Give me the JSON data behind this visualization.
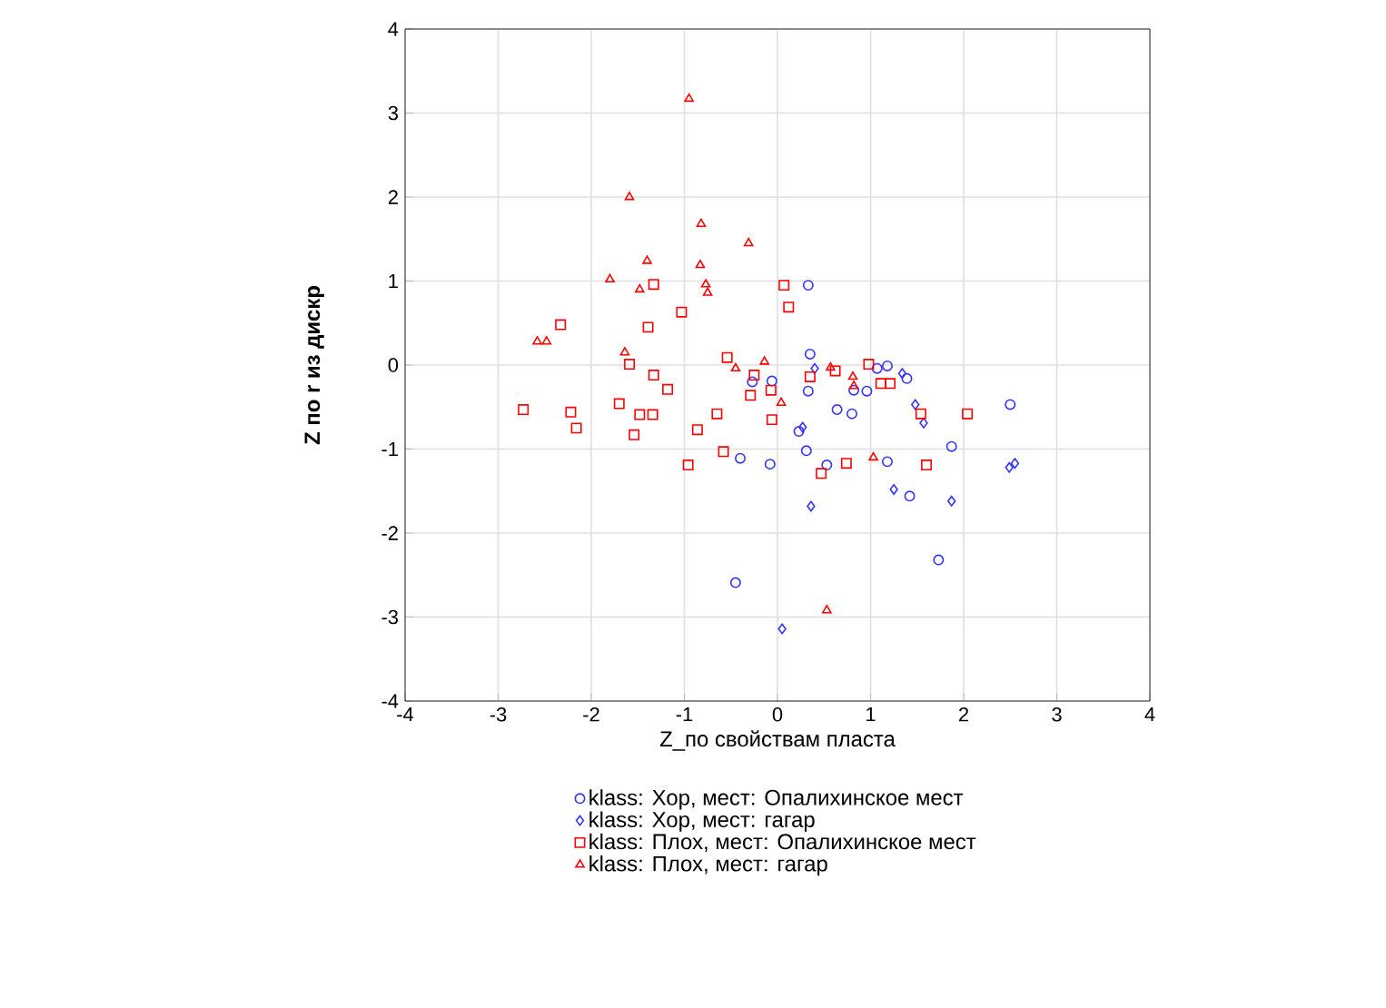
{
  "chart_data": {
    "type": "scatter",
    "xlabel": "Z_по свойствам пласта",
    "ylabel": "Z по r из дискр",
    "xlim": [
      -4,
      4
    ],
    "ylim": [
      -4,
      4
    ],
    "xticks": [
      -4,
      -3,
      -2,
      -1,
      0,
      1,
      2,
      3,
      4
    ],
    "yticks": [
      -4,
      -3,
      -2,
      -1,
      0,
      1,
      2,
      3,
      4
    ],
    "grid": true,
    "legend": "bottom",
    "series": [
      {
        "name": "klass: Хор, мест: Опалихинское мест",
        "color": "#3333ff",
        "marker": "circle",
        "x": [
          0.33,
          0.35,
          -0.27,
          -0.06,
          0.33,
          0.64,
          0.8,
          0.23,
          0.31,
          -0.4,
          -0.08,
          0.53,
          1.18,
          1.42,
          1.87,
          2.5,
          1.73,
          0.96,
          1.18,
          1.07,
          1.39,
          0.82,
          -0.45
        ],
        "values": [
          0.95,
          0.13,
          -0.2,
          -0.19,
          -0.31,
          -0.53,
          -0.58,
          -0.79,
          -1.02,
          -1.11,
          -1.18,
          -1.19,
          -1.15,
          -1.56,
          -0.97,
          -0.47,
          -2.32,
          -0.31,
          -0.01,
          -0.04,
          -0.16,
          -0.3,
          -2.59
        ]
      },
      {
        "name": "klass: Хор, мест: гагар",
        "color": "#3333ff",
        "marker": "diamond",
        "x": [
          0.4,
          1.34,
          1.48,
          1.57,
          0.27,
          1.25,
          1.87,
          0.36,
          2.49,
          2.55,
          0.05
        ],
        "values": [
          -0.04,
          -0.1,
          -0.47,
          -0.69,
          -0.74,
          -1.48,
          -1.62,
          -1.68,
          -1.22,
          -1.17,
          -3.14
        ]
      },
      {
        "name": "klass: Плох, мест: Опалихинское мест",
        "color": "#ff0000",
        "marker": "square",
        "x": [
          -1.33,
          0.07,
          0.12,
          -1.03,
          -2.33,
          -1.39,
          -1.59,
          -0.54,
          -1.33,
          -1.18,
          -2.73,
          -2.22,
          -2.16,
          -1.7,
          -1.48,
          -1.34,
          -1.54,
          -0.86,
          -0.65,
          -0.96,
          -0.58,
          -0.25,
          -0.29,
          -0.07,
          -0.06,
          0.35,
          0.62,
          0.47,
          0.98,
          1.11,
          1.21,
          1.54,
          2.04,
          1.6,
          0.74
        ],
        "values": [
          0.96,
          0.95,
          0.69,
          0.63,
          0.48,
          0.45,
          0.01,
          0.09,
          -0.12,
          -0.29,
          -0.53,
          -0.56,
          -0.75,
          -0.46,
          -0.59,
          -0.59,
          -0.83,
          -0.77,
          -0.58,
          -1.19,
          -1.03,
          -0.12,
          -0.36,
          -0.3,
          -0.65,
          -0.14,
          -0.07,
          -1.29,
          0.01,
          -0.22,
          -0.22,
          -0.58,
          -0.58,
          -1.19,
          -1.17
        ]
      },
      {
        "name": "klass: Плох, мест: гагар",
        "color": "#ff0000",
        "marker": "triangle",
        "x": [
          -0.95,
          -1.59,
          -0.82,
          -0.31,
          -1.4,
          -0.83,
          -1.8,
          -0.77,
          -0.75,
          -1.48,
          -2.58,
          -2.48,
          -1.64,
          -0.14,
          -0.45,
          0.57,
          0.81,
          0.04,
          0.82,
          1.03,
          0.53
        ],
        "values": [
          3.17,
          2.0,
          1.68,
          1.45,
          1.24,
          1.19,
          1.02,
          0.96,
          0.86,
          0.9,
          0.28,
          0.28,
          0.15,
          0.04,
          -0.04,
          -0.03,
          -0.14,
          -0.45,
          -0.25,
          -1.1,
          -2.92
        ]
      }
    ]
  }
}
